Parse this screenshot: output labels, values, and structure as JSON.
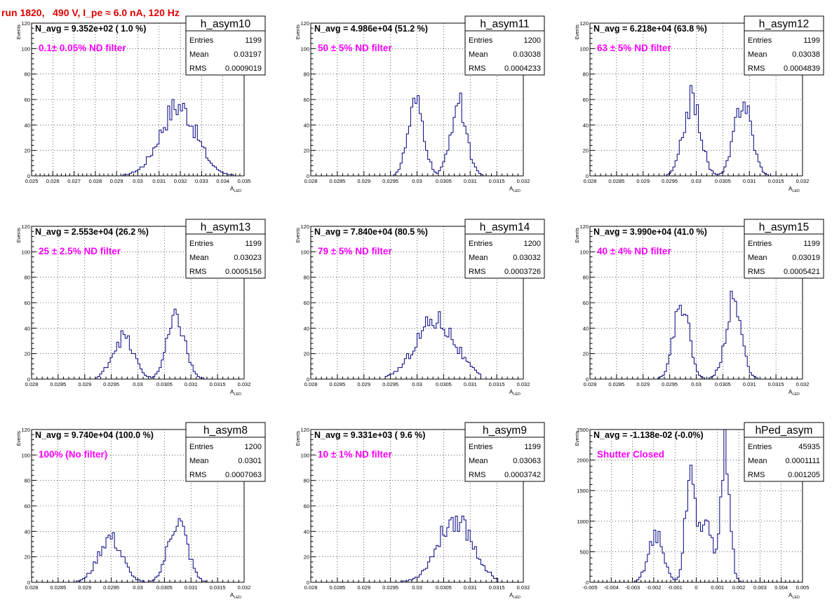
{
  "page": {
    "title": "run 1820,   490 V, I_pe ≈ 6.0 nA, 120 Hz"
  },
  "chart_data": [
    {
      "type": "histogram",
      "title": "h_asym10",
      "stats": [
        {
          "label": "Entries",
          "value": "1199"
        },
        {
          "label": "Mean",
          "value": "0.03197"
        },
        {
          "label": "RMS",
          "value": "0.0009019"
        }
      ],
      "n_avg": "N_avg = 9.352e+02 ( 1.0 %)",
      "filter": "0.1± 0.05% ND filter",
      "xlabel": "A",
      "xlabel_sub": "LED",
      "ylabel": "Events",
      "xlim": [
        0.025,
        0.035
      ],
      "ylim": [
        0,
        120
      ],
      "xticks": [
        "0.025",
        "0.026",
        "0.027",
        "0.028",
        "0.029",
        "0.03",
        "0.031",
        "0.032",
        "0.033",
        "0.034",
        "0.035"
      ],
      "yticks": [
        "0",
        "20",
        "40",
        "60",
        "80",
        "100",
        "120"
      ],
      "grid": true,
      "peaks": [
        {
          "mu": 0.0319,
          "sigma": 0.00085,
          "amp": 55,
          "lo": 0.0288,
          "hi": 0.0348
        }
      ],
      "n_bins": 100
    },
    {
      "type": "histogram",
      "title": "h_asym11",
      "stats": [
        {
          "label": "Entries",
          "value": "1200"
        },
        {
          "label": "Mean",
          "value": "0.03038"
        },
        {
          "label": "RMS",
          "value": "0.0004233"
        }
      ],
      "n_avg": "N_avg = 4.986e+04 (51.2 %)",
      "filter": "50 ± 5% ND filter",
      "xlabel": "A",
      "xlabel_sub": "LED",
      "ylabel": "Events",
      "xlim": [
        0.028,
        0.032
      ],
      "ylim": [
        0,
        120
      ],
      "xticks": [
        "0.028",
        "0.0285",
        "0.029",
        "0.0295",
        "0.03",
        "0.0305",
        "0.031",
        "0.0315",
        "0.032"
      ],
      "yticks": [
        "0",
        "20",
        "40",
        "60",
        "80",
        "100",
        "120"
      ],
      "grid": true,
      "peaks": [
        {
          "mu": 0.02998,
          "sigma": 0.00015,
          "amp": 55,
          "lo": 0.02955,
          "hi": 0.0304
        },
        {
          "mu": 0.03078,
          "sigma": 0.00015,
          "amp": 57,
          "lo": 0.0304,
          "hi": 0.0313
        }
      ],
      "n_bins": 100
    },
    {
      "type": "histogram",
      "title": "h_asym12",
      "stats": [
        {
          "label": "Entries",
          "value": "1199"
        },
        {
          "label": "Mean",
          "value": "0.03038"
        },
        {
          "label": "RMS",
          "value": "0.0004839"
        }
      ],
      "n_avg": "N_avg = 6.218e+04 (63.8 %)",
      "filter": "63 ± 5% ND filter",
      "xlabel": "A",
      "xlabel_sub": "LED",
      "ylabel": "Events",
      "xlim": [
        0.028,
        0.032
      ],
      "ylim": [
        0,
        120
      ],
      "xticks": [
        "0.028",
        "0.0285",
        "0.029",
        "0.0295",
        "0.03",
        "0.0305",
        "0.031",
        "0.0315",
        "0.032"
      ],
      "yticks": [
        "0",
        "20",
        "40",
        "60",
        "80",
        "100",
        "120"
      ],
      "grid": true,
      "peaks": [
        {
          "mu": 0.02992,
          "sigma": 0.00016,
          "amp": 60,
          "lo": 0.02945,
          "hi": 0.0304
        },
        {
          "mu": 0.03088,
          "sigma": 0.00016,
          "amp": 60,
          "lo": 0.0304,
          "hi": 0.0314
        }
      ],
      "n_bins": 100
    },
    {
      "type": "histogram",
      "title": "h_asym13",
      "stats": [
        {
          "label": "Entries",
          "value": "1199"
        },
        {
          "label": "Mean",
          "value": "0.03023"
        },
        {
          "label": "RMS",
          "value": "0.0005156"
        }
      ],
      "n_avg": "N_avg = 2.553e+04 (26.2 %)",
      "filter": "25 ± 2.5% ND filter",
      "xlabel": "A",
      "xlabel_sub": "LED",
      "ylabel": "Events",
      "xlim": [
        0.028,
        0.032
      ],
      "ylim": [
        0,
        120
      ],
      "xticks": [
        "0.028",
        "0.0285",
        "0.029",
        "0.0295",
        "0.03",
        "0.0305",
        "0.031",
        "0.0315",
        "0.032"
      ],
      "yticks": [
        "0",
        "20",
        "40",
        "60",
        "80",
        "100",
        "120"
      ],
      "grid": true,
      "peaks": [
        {
          "mu": 0.02972,
          "sigma": 0.0002,
          "amp": 33,
          "lo": 0.0292,
          "hi": 0.03025
        },
        {
          "mu": 0.03072,
          "sigma": 0.00017,
          "amp": 47,
          "lo": 0.03025,
          "hi": 0.0313
        }
      ],
      "n_bins": 100
    },
    {
      "type": "histogram",
      "title": "h_asym14",
      "stats": [
        {
          "label": "Entries",
          "value": "1200"
        },
        {
          "label": "Mean",
          "value": "0.03032"
        },
        {
          "label": "RMS",
          "value": "0.0003726"
        }
      ],
      "n_avg": "N_avg = 7.840e+04 (80.5 %)",
      "filter": "79 ± 5% ND filter",
      "xlabel": "A",
      "xlabel_sub": "LED",
      "ylabel": "Events",
      "xlim": [
        0.028,
        0.032
      ],
      "ylim": [
        0,
        120
      ],
      "xticks": [
        "0.028",
        "0.0285",
        "0.029",
        "0.0295",
        "0.03",
        "0.0305",
        "0.031",
        "0.0315",
        "0.032"
      ],
      "yticks": [
        "0",
        "20",
        "40",
        "60",
        "80",
        "100",
        "120"
      ],
      "grid": true,
      "peaks": [
        {
          "mu": 0.03035,
          "sigma": 0.00037,
          "amp": 47,
          "lo": 0.0294,
          "hi": 0.0312
        }
      ],
      "n_bins": 100
    },
    {
      "type": "histogram",
      "title": "h_asym15",
      "stats": [
        {
          "label": "Entries",
          "value": "1199"
        },
        {
          "label": "Mean",
          "value": "0.03019"
        },
        {
          "label": "RMS",
          "value": "0.0005421"
        }
      ],
      "n_avg": "N_avg = 3.990e+04 (41.0 %)",
      "filter": "40 ± 4% ND filter",
      "xlabel": "A",
      "xlabel_sub": "LED",
      "ylabel": "Events",
      "xlim": [
        0.028,
        0.032
      ],
      "ylim": [
        0,
        120
      ],
      "xticks": [
        "0.028",
        "0.0285",
        "0.029",
        "0.0295",
        "0.03",
        "0.0305",
        "0.031",
        "0.0315",
        "0.032"
      ],
      "yticks": [
        "0",
        "20",
        "40",
        "60",
        "80",
        "100",
        "120"
      ],
      "grid": true,
      "peaks": [
        {
          "mu": 0.02972,
          "sigma": 0.00014,
          "amp": 62,
          "lo": 0.0292,
          "hi": 0.03015
        },
        {
          "mu": 0.0307,
          "sigma": 0.00015,
          "amp": 60,
          "lo": 0.0302,
          "hi": 0.0313
        }
      ],
      "n_bins": 100
    },
    {
      "type": "histogram",
      "title": "h_asym8",
      "stats": [
        {
          "label": "Entries",
          "value": "1200"
        },
        {
          "label": "Mean",
          "value": "0.0301"
        },
        {
          "label": "RMS",
          "value": "0.0007063"
        }
      ],
      "n_avg": "N_avg = 9.740e+04 (100.0 %)",
      "filter": "100% (No filter)",
      "xlabel": "A",
      "xlabel_sub": "LED",
      "ylabel": "Events",
      "xlim": [
        0.028,
        0.032
      ],
      "ylim": [
        0,
        120
      ],
      "xticks": [
        "0.028",
        "0.0285",
        "0.029",
        "0.0295",
        "0.03",
        "0.0305",
        "0.031",
        "0.0315",
        "0.032"
      ],
      "yticks": [
        "0",
        "20",
        "40",
        "60",
        "80",
        "100",
        "120"
      ],
      "grid": true,
      "peaks": [
        {
          "mu": 0.02948,
          "sigma": 0.00022,
          "amp": 35,
          "lo": 0.0288,
          "hi": 0.03015
        },
        {
          "mu": 0.03075,
          "sigma": 0.00018,
          "amp": 48,
          "lo": 0.03015,
          "hi": 0.0316
        }
      ],
      "n_bins": 100
    },
    {
      "type": "histogram",
      "title": "h_asym9",
      "stats": [
        {
          "label": "Entries",
          "value": "1199"
        },
        {
          "label": "Mean",
          "value": "0.03063"
        },
        {
          "label": "RMS",
          "value": "0.0003742"
        }
      ],
      "n_avg": "N_avg = 9.331e+03 ( 9.6 %)",
      "filter": "10 ± 1% ND filter",
      "xlabel": "A",
      "xlabel_sub": "LED",
      "ylabel": "Events",
      "xlim": [
        0.028,
        0.032
      ],
      "ylim": [
        0,
        120
      ],
      "xticks": [
        "0.028",
        "0.0285",
        "0.029",
        "0.0295",
        "0.03",
        "0.0305",
        "0.031",
        "0.0315",
        "0.032"
      ],
      "yticks": [
        "0",
        "20",
        "40",
        "60",
        "80",
        "100",
        "120"
      ],
      "grid": true,
      "peaks": [
        {
          "mu": 0.03072,
          "sigma": 0.00033,
          "amp": 50,
          "lo": 0.0296,
          "hi": 0.0315
        }
      ],
      "n_bins": 100
    },
    {
      "type": "histogram",
      "title": "hPed_asym",
      "stats": [
        {
          "label": "Entries",
          "value": "45935"
        },
        {
          "label": "Mean",
          "value": "0.0001111"
        },
        {
          "label": "RMS",
          "value": "0.001205"
        }
      ],
      "n_avg": "N_avg = -1.138e-02 (-0.0%)",
      "filter": "Shutter Closed",
      "xlabel": "A",
      "xlabel_sub": "LED",
      "ylabel": "Events",
      "xlim": [
        -0.005,
        0.005
      ],
      "ylim": [
        0,
        2500
      ],
      "xticks": [
        "-0.005",
        "-0.004",
        "-0.003",
        "-0.002",
        "-0.001",
        "0",
        "0.001",
        "0.002",
        "0.003",
        "0.004",
        "0.005"
      ],
      "yticks": [
        "0",
        "500",
        "1000",
        "1500",
        "2000",
        "2500"
      ],
      "grid": true,
      "peaks": [
        {
          "mu": -0.0019,
          "sigma": 0.00035,
          "amp": 780,
          "lo": -0.0035,
          "hi": 0.003
        },
        {
          "mu": -0.0003,
          "sigma": 0.00022,
          "amp": 1500,
          "lo": -0.0035,
          "hi": 0.003
        },
        {
          "mu": 0.0004,
          "sigma": 0.00045,
          "amp": 900,
          "lo": -0.0035,
          "hi": 0.003
        },
        {
          "mu": 0.0014,
          "sigma": 0.0002,
          "amp": 2100,
          "lo": -0.0035,
          "hi": 0.003
        }
      ],
      "n_bins": 100
    }
  ]
}
